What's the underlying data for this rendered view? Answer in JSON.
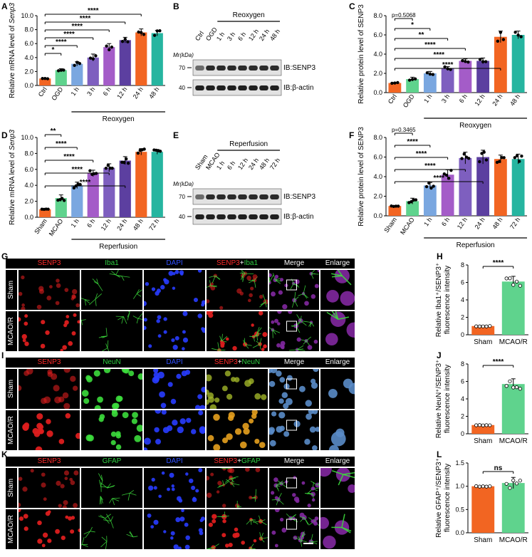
{
  "panel_labels": {
    "A": "A",
    "B": "B",
    "C": "C",
    "D": "D",
    "E": "E",
    "F": "F",
    "G": "G",
    "H": "H",
    "I": "I",
    "J": "J",
    "K": "K",
    "L": "L"
  },
  "charts": {
    "A": {
      "type": "bar",
      "ylabel": "Relative mRNA level of Senp3",
      "ylim": [
        0,
        10
      ],
      "yticks": [
        "0.0",
        "2.0",
        "4.0",
        "6.0",
        "8.0",
        "10.0"
      ],
      "categories": [
        "Ctrl",
        "OGD",
        "1 h",
        "3 h",
        "6 h",
        "12 h",
        "24 h",
        "48 h"
      ],
      "values": [
        1.0,
        2.2,
        3.1,
        4.0,
        5.5,
        6.5,
        7.6,
        7.5
      ],
      "errors": [
        0.05,
        0.2,
        0.3,
        0.5,
        0.5,
        0.4,
        0.5,
        0.4
      ],
      "colors": [
        "#f26522",
        "#5fd38d",
        "#7aa7e0",
        "#7e5fbf",
        "#a45cc8",
        "#5c3fa0",
        "#f26522",
        "#26b5a0"
      ],
      "group_label": "Reoxygen",
      "group_start": 2,
      "sig": [
        {
          "from": 0,
          "to": 1,
          "text": "*"
        },
        {
          "from": 0,
          "to": 2,
          "text": "****"
        },
        {
          "from": 0,
          "to": 3,
          "text": "****"
        },
        {
          "from": 0,
          "to": 4,
          "text": "****"
        },
        {
          "from": 0,
          "to": 5,
          "text": "****"
        },
        {
          "from": 0,
          "to": 6,
          "text": "****"
        }
      ]
    },
    "C": {
      "type": "bar",
      "ylabel": "Relative protein level of SENP3",
      "ylim": [
        0,
        8
      ],
      "yticks": [
        "0.0",
        "2.0",
        "4.0",
        "6.0",
        "8.0"
      ],
      "categories": [
        "Ctrl",
        "OGD",
        "1 h",
        "3 h",
        "6 h",
        "12 h",
        "24 h",
        "48 h"
      ],
      "values": [
        1.0,
        1.4,
        2.0,
        2.5,
        3.3,
        3.3,
        5.8,
        6.0
      ],
      "errors": [
        0.05,
        0.2,
        0.2,
        0.2,
        0.2,
        0.3,
        0.6,
        0.4
      ],
      "colors": [
        "#f26522",
        "#5fd38d",
        "#7aa7e0",
        "#7e5fbf",
        "#a45cc8",
        "#5c3fa0",
        "#f26522",
        "#26b5a0"
      ],
      "group_label": "Reoxygen",
      "group_start": 2,
      "sig": [
        {
          "from": 0,
          "to": 1,
          "text": "p=0.5068"
        },
        {
          "from": 0,
          "to": 2,
          "text": "*"
        },
        {
          "from": 0,
          "to": 3,
          "text": "**"
        },
        {
          "from": 0,
          "to": 4,
          "text": "****"
        },
        {
          "from": 0,
          "to": 5,
          "text": "****"
        },
        {
          "from": 0,
          "to": 6,
          "text": "****"
        }
      ]
    },
    "D": {
      "type": "bar",
      "ylabel": "Relative mRNA level of Senp3",
      "ylim": [
        0,
        10
      ],
      "yticks": [
        "0.0",
        "2.0",
        "4.0",
        "6.0",
        "8.0",
        "10.0"
      ],
      "categories": [
        "Sham",
        "MCAO",
        "1 h",
        "6 h",
        "12 h",
        "24 h",
        "48 h",
        "72 h"
      ],
      "values": [
        1.0,
        2.4,
        4.0,
        5.5,
        6.2,
        7.1,
        8.2,
        8.2
      ],
      "errors": [
        0.05,
        0.4,
        0.4,
        0.4,
        0.5,
        0.5,
        0.4,
        0.3
      ],
      "colors": [
        "#f26522",
        "#5fd38d",
        "#7aa7e0",
        "#a45cc8",
        "#7e5fbf",
        "#5c3fa0",
        "#f26522",
        "#26b5a0"
      ],
      "group_label": "Reperfusion",
      "group_start": 2,
      "sig": [
        {
          "from": 0,
          "to": 1,
          "text": "**"
        },
        {
          "from": 0,
          "to": 2,
          "text": "****"
        },
        {
          "from": 0,
          "to": 3,
          "text": "****"
        },
        {
          "from": 0,
          "to": 4,
          "text": "****"
        },
        {
          "from": 0,
          "to": 5,
          "text": "****"
        }
      ]
    },
    "F": {
      "type": "bar",
      "ylabel": "Relative protein level of SENP3",
      "ylim": [
        0,
        8
      ],
      "yticks": [
        "0.0",
        "2.0",
        "4.0",
        "6.0",
        "8.0"
      ],
      "categories": [
        "Sham",
        "MCAO",
        "1 h",
        "6 h",
        "12 h",
        "24 h",
        "48 h",
        "72 h"
      ],
      "values": [
        1.0,
        1.5,
        3.1,
        4.2,
        5.9,
        6.0,
        5.8,
        5.8
      ],
      "errors": [
        0.05,
        0.3,
        0.3,
        0.5,
        0.6,
        0.7,
        0.4,
        0.5
      ],
      "colors": [
        "#f26522",
        "#5fd38d",
        "#7aa7e0",
        "#a45cc8",
        "#7e5fbf",
        "#5c3fa0",
        "#f26522",
        "#26b5a0"
      ],
      "group_label": "Reperfusion",
      "group_start": 2,
      "sig": [
        {
          "from": 0,
          "to": 1,
          "text": "p=0.3465"
        },
        {
          "from": 0,
          "to": 2,
          "text": "****"
        },
        {
          "from": 0,
          "to": 3,
          "text": "****"
        },
        {
          "from": 0,
          "to": 4,
          "text": "****"
        },
        {
          "from": 0,
          "to": 5,
          "text": "****"
        }
      ]
    },
    "H": {
      "type": "bar",
      "ylabel_line1": "Relative Iba1⁺/SENP3⁺",
      "ylabel_line2": "fluorescence intensity",
      "ylim": [
        0,
        8
      ],
      "yticks": [
        "0",
        "2",
        "4",
        "6",
        "8"
      ],
      "categories": [
        "Sham",
        "MCAO/R"
      ],
      "values": [
        1.0,
        6.1
      ],
      "errors": [
        0.05,
        0.6
      ],
      "colors": [
        "#f26522",
        "#5fd38d"
      ],
      "sig": [
        {
          "from": 0,
          "to": 1,
          "text": "****"
        }
      ]
    },
    "J": {
      "type": "bar",
      "ylabel_line1": "Relative NeuN⁺/SENP3⁺",
      "ylabel_line2": "fluorescence intensity",
      "ylim": [
        0,
        8
      ],
      "yticks": [
        "0",
        "2",
        "4",
        "6",
        "8"
      ],
      "categories": [
        "Sham",
        "MCAO/R"
      ],
      "values": [
        1.0,
        5.7
      ],
      "errors": [
        0.05,
        0.6
      ],
      "colors": [
        "#f26522",
        "#5fd38d"
      ],
      "sig": [
        {
          "from": 0,
          "to": 1,
          "text": "****"
        }
      ]
    },
    "L": {
      "type": "bar",
      "ylabel_line1": "Relative GFAP⁺/SENP3⁺",
      "ylabel_line2": "fluorescence intensity",
      "ylim": [
        0,
        1.5
      ],
      "yticks": [
        "0.0",
        "0.5",
        "1.0",
        "1.5"
      ],
      "categories": [
        "Sham",
        "MCAO/R"
      ],
      "values": [
        1.0,
        1.07
      ],
      "errors": [
        0.01,
        0.12
      ],
      "colors": [
        "#f26522",
        "#5fd38d"
      ],
      "sig": [
        {
          "from": 0,
          "to": 1,
          "text": "ns"
        }
      ]
    }
  },
  "blots": {
    "B": {
      "mr": "Mr(kDa)",
      "lanes": [
        "Ctrl",
        "OGD",
        "1 h",
        "3 h",
        "6 h",
        "12 h",
        "24 h",
        "48 h"
      ],
      "group_label": "Reoxygen",
      "group_start": 2,
      "ib1": "IB:SENP3",
      "ib2": "IB:β-actin",
      "mw1": "70",
      "mw2": "40"
    },
    "E": {
      "mr": "Mr(kDa)",
      "lanes": [
        "Sham",
        "MCAO",
        "1 h",
        "6 h",
        "12 h",
        "24 h",
        "48 h",
        "72 h"
      ],
      "group_label": "Reperfusion",
      "group_start": 2,
      "ib1": "IB:SENP3",
      "ib2": "IB:β-actin",
      "mw1": "70",
      "mw2": "40"
    }
  },
  "micro": {
    "G": {
      "headers": [
        {
          "t": "SENP3",
          "c": "#ff2a2a"
        },
        {
          "t": "Iba1",
          "c": "#2ecc40"
        },
        {
          "t": "DAPI",
          "c": "#3050ff"
        },
        {
          "t": "SENP3+Iba1",
          "c": "#ff2a2a",
          "t2": "Iba1",
          "c2": "#2ecc40"
        },
        {
          "t": "Merge",
          "c": "#ffffff"
        },
        {
          "t": "Enlarge",
          "c": "#ffffff"
        }
      ],
      "rows": [
        "Sham",
        "MCAO/R"
      ],
      "mode": "microglia"
    },
    "I": {
      "headers": [
        {
          "t": "SENP3",
          "c": "#ff2a2a"
        },
        {
          "t": "NeuN",
          "c": "#2ecc40"
        },
        {
          "t": "DAPI",
          "c": "#3050ff"
        },
        {
          "t": "SENP3+NeuN",
          "c": "#ff2a2a",
          "t2": "NeuN",
          "c2": "#2ecc40"
        },
        {
          "t": "Merge",
          "c": "#ffffff"
        },
        {
          "t": "Enlarge",
          "c": "#ffffff"
        }
      ],
      "rows": [
        "Sham",
        "MCAO/R"
      ],
      "mode": "neuron"
    },
    "K": {
      "headers": [
        {
          "t": "SENP3",
          "c": "#ff2a2a"
        },
        {
          "t": "GFAP",
          "c": "#2ecc40"
        },
        {
          "t": "DAPI",
          "c": "#3050ff"
        },
        {
          "t": "SENP3+GFAP",
          "c": "#ff2a2a",
          "t2": "GFAP",
          "c2": "#2ecc40"
        },
        {
          "t": "Merge",
          "c": "#ffffff"
        },
        {
          "t": "Enlarge",
          "c": "#ffffff"
        }
      ],
      "rows": [
        "Sham",
        "MCAO/R"
      ],
      "mode": "astro"
    }
  }
}
